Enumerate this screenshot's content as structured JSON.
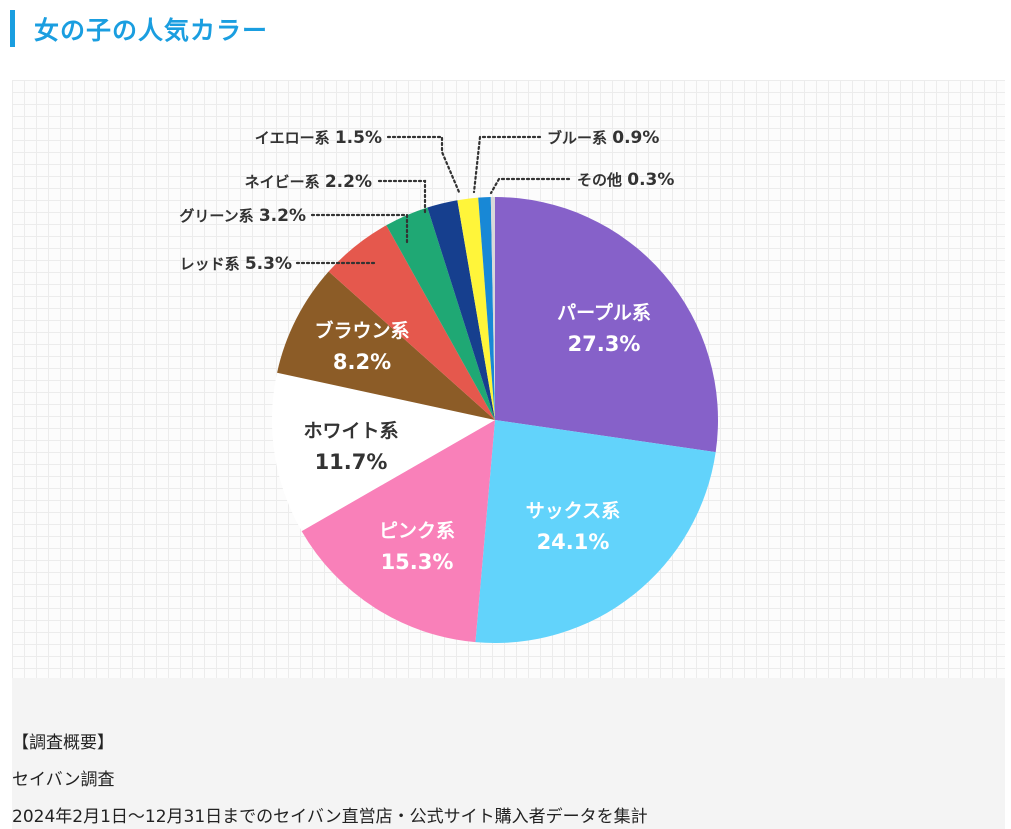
{
  "page": {
    "title": "女の子の人気カラー"
  },
  "chart_data": {
    "type": "pie",
    "title": "",
    "slices": [
      {
        "name": "パープル系",
        "value": 27.3,
        "label": "27.3%",
        "color": "#8661c9"
      },
      {
        "name": "サックス系",
        "value": 24.1,
        "label": "24.1%",
        "color": "#62d3fb"
      },
      {
        "name": "ピンク系",
        "value": 15.3,
        "label": "15.3%",
        "color": "#f980b9"
      },
      {
        "name": "ホワイト系",
        "value": 11.7,
        "label": "11.7%",
        "color": "#ffffff"
      },
      {
        "name": "ブラウン系",
        "value": 8.2,
        "label": "8.2%",
        "color": "#8c5c27"
      },
      {
        "name": "レッド系",
        "value": 5.3,
        "label": "5.3%",
        "color": "#e5584d"
      },
      {
        "name": "グリーン系",
        "value": 3.2,
        "label": "3.2%",
        "color": "#1fa874"
      },
      {
        "name": "ネイビー系",
        "value": 2.2,
        "label": "2.2%",
        "color": "#163f8e"
      },
      {
        "name": "イエロー系",
        "value": 1.5,
        "label": "1.5%",
        "color": "#fff53a"
      },
      {
        "name": "ブルー系",
        "value": 0.9,
        "label": "0.9%",
        "color": "#1888d6"
      },
      {
        "name": "その他",
        "value": 0.3,
        "label": "0.3%",
        "color": "#d9d9d9"
      }
    ],
    "start": "12 o'clock",
    "direction": "clockwise"
  },
  "summary": {
    "heading": "【調査概要】",
    "source": "セイバン調査",
    "description": "2024年2月1日〜12月31日までのセイバン直営店・公式サイト購入者データを集計"
  },
  "colors": {
    "accent": "#1a9ee0",
    "label_dark": "#333333",
    "label_light": "#ffffff"
  }
}
